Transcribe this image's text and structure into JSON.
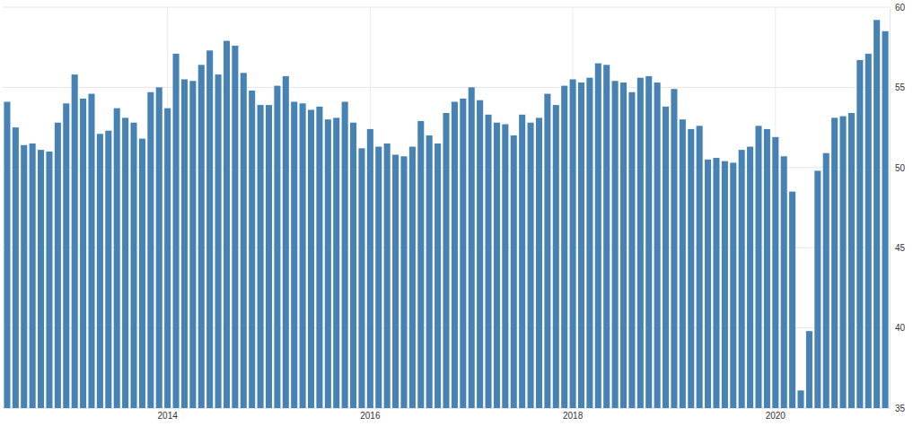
{
  "chart_data": {
    "type": "bar",
    "categories": [
      null,
      null,
      null,
      null,
      null,
      null,
      null,
      null,
      null,
      null,
      null,
      null,
      null,
      null,
      null,
      null,
      null,
      null,
      null,
      "2014",
      null,
      null,
      null,
      null,
      null,
      null,
      null,
      null,
      null,
      null,
      null,
      null,
      null,
      null,
      null,
      null,
      null,
      null,
      null,
      null,
      null,
      null,
      null,
      "2016",
      null,
      null,
      null,
      null,
      null,
      null,
      null,
      null,
      null,
      null,
      null,
      null,
      null,
      null,
      null,
      null,
      null,
      null,
      null,
      null,
      null,
      null,
      null,
      "2018",
      null,
      null,
      null,
      null,
      null,
      null,
      null,
      null,
      null,
      null,
      null,
      null,
      null,
      null,
      null,
      null,
      null,
      null,
      null,
      null,
      null,
      null,
      null,
      "2020",
      null,
      null,
      null,
      null,
      null,
      null,
      null,
      null,
      null,
      null,
      null,
      null,
      null
    ],
    "values": [
      54.1,
      52.5,
      51.4,
      51.5,
      51.1,
      51.0,
      52.8,
      54.0,
      55.8,
      54.3,
      54.6,
      52.1,
      52.3,
      53.7,
      53.1,
      52.8,
      51.8,
      54.7,
      55.0,
      53.7,
      57.1,
      55.5,
      55.4,
      56.4,
      57.3,
      55.8,
      57.9,
      57.6,
      55.9,
      54.8,
      53.9,
      53.9,
      55.1,
      55.7,
      54.1,
      54.0,
      53.6,
      53.8,
      53.0,
      53.1,
      54.1,
      52.8,
      51.2,
      52.4,
      51.3,
      51.5,
      50.8,
      50.7,
      51.3,
      52.9,
      52.0,
      51.5,
      53.4,
      54.1,
      54.3,
      55.0,
      54.2,
      53.3,
      52.8,
      52.7,
      52.0,
      53.3,
      52.8,
      53.1,
      54.6,
      53.9,
      55.1,
      55.5,
      55.3,
      55.6,
      56.5,
      56.4,
      55.4,
      55.3,
      54.7,
      55.6,
      55.7,
      55.3,
      53.8,
      54.9,
      53.0,
      52.4,
      52.6,
      50.5,
      50.6,
      50.4,
      50.3,
      51.1,
      51.3,
      52.6,
      52.4,
      51.9,
      50.7,
      48.5,
      36.1,
      39.8,
      49.8,
      50.9,
      53.1,
      53.2,
      53.4,
      56.7,
      57.1,
      59.2,
      58.5
    ],
    "color": "#4682b4",
    "ylim": [
      35,
      60
    ],
    "yticks": [
      35,
      40,
      45,
      50,
      55,
      60
    ],
    "grid": true
  }
}
